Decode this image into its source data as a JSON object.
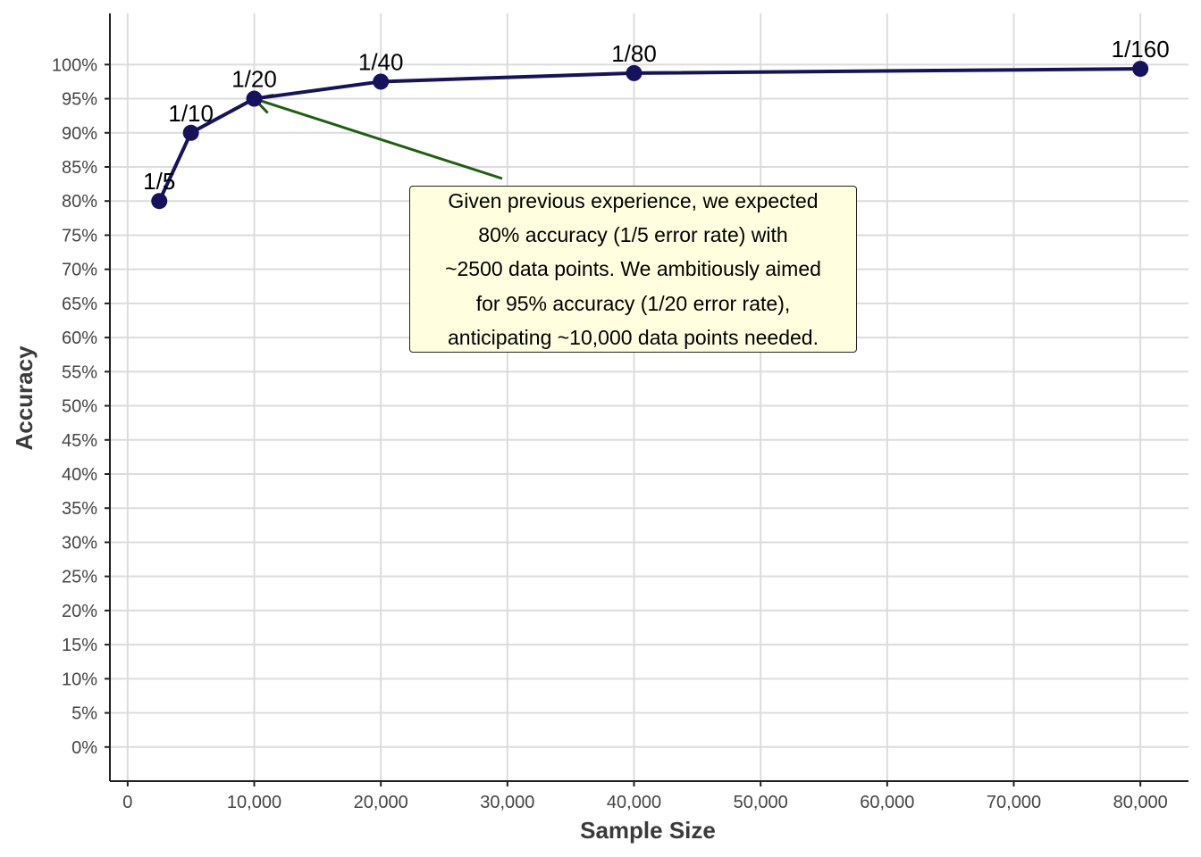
{
  "chart_data": {
    "type": "line",
    "title": "",
    "xlabel": "Sample Size",
    "ylabel": "Accuracy",
    "x_ticks": [
      "0",
      "10,000",
      "20,000",
      "30,000",
      "40,000",
      "50,000",
      "60,000",
      "70,000",
      "80,000"
    ],
    "y_ticks": [
      "0%",
      "5%",
      "10%",
      "15%",
      "20%",
      "25%",
      "30%",
      "35%",
      "40%",
      "45%",
      "50%",
      "55%",
      "60%",
      "65%",
      "70%",
      "75%",
      "80%",
      "85%",
      "90%",
      "95%",
      "100%"
    ],
    "xlim": [
      -1400,
      83800
    ],
    "ylim": [
      -5,
      107.5
    ],
    "x_tick_values": [
      0,
      10000,
      20000,
      30000,
      40000,
      50000,
      60000,
      70000,
      80000
    ],
    "y_tick_values": [
      0,
      5,
      10,
      15,
      20,
      25,
      30,
      35,
      40,
      45,
      50,
      55,
      60,
      65,
      70,
      75,
      80,
      85,
      90,
      95,
      100
    ],
    "grid": true,
    "series": [
      {
        "color": "#16135c",
        "points": [
          {
            "x": 2500,
            "y": 80,
            "label": "1/5"
          },
          {
            "x": 5000,
            "y": 90,
            "label": "1/10"
          },
          {
            "x": 10000,
            "y": 95,
            "label": "1/20"
          },
          {
            "x": 20000,
            "y": 97.5,
            "label": "1/40"
          },
          {
            "x": 40000,
            "y": 98.75,
            "label": "1/80"
          },
          {
            "x": 80000,
            "y": 99.375,
            "label": "1/160"
          }
        ]
      }
    ],
    "annotation": {
      "lines": [
        "Given previous experience, we expected",
        "80% accuracy (1/5 error rate) with",
        "~2500 data points. We ambitiously aimed",
        "for 95% accuracy (1/20 error rate),",
        "anticipating ~10,000 data points needed."
      ],
      "arrow_target": {
        "x": 10000,
        "y": 95
      },
      "arrow_color": "#1f5e12",
      "box_color": "#ffffe0"
    }
  }
}
